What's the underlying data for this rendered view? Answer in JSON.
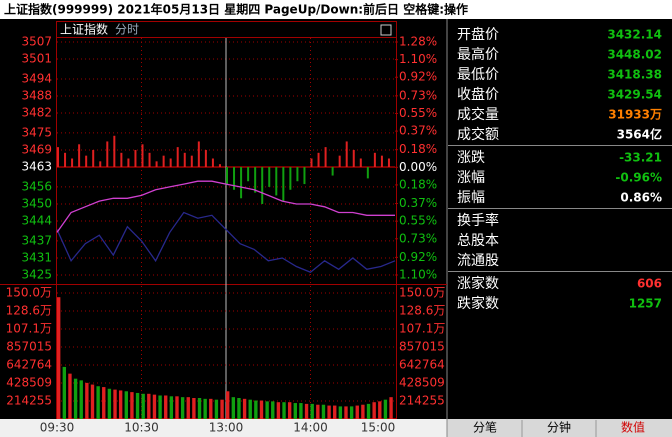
{
  "header": {
    "title": "上证指数(999999)  2021年05月13日 星期四 PageUp/Down:前后日 空格键:操作"
  },
  "chart_data": [
    {
      "type": "line",
      "title": "上证指数",
      "subtitle": "分时",
      "x": [
        0,
        10,
        20,
        30,
        40,
        50,
        60,
        70,
        80,
        90,
        100,
        110,
        120,
        130,
        140,
        150,
        160,
        170,
        180,
        190,
        200,
        210,
        220,
        230,
        240
      ],
      "series": [
        {
          "color": "#28288c",
          "values": [
            3441,
            3430,
            3436,
            3439,
            3432,
            3442,
            3437,
            3430,
            3440,
            3447,
            3445,
            3446,
            3441,
            3436,
            3434,
            3430,
            3431,
            3428,
            3426,
            3430,
            3427,
            3431,
            3427,
            3428,
            3430
          ]
        },
        {
          "color": "#d040d0",
          "values": [
            3440,
            3447,
            3449,
            3451,
            3452,
            3452,
            3453,
            3455,
            3456,
            3457,
            3458,
            3458,
            3457,
            3456,
            3455,
            3453,
            3451,
            3450,
            3450,
            3449,
            3447,
            3447,
            3446,
            3446,
            3446
          ]
        }
      ],
      "breadth": {
        "x": [
          0,
          5,
          10,
          15,
          20,
          25,
          30,
          35,
          40,
          45,
          50,
          55,
          60,
          65,
          70,
          75,
          80,
          85,
          90,
          95,
          100,
          105,
          110,
          115,
          120,
          125,
          130,
          135,
          140,
          145,
          150,
          155,
          160,
          165,
          170,
          175,
          180,
          185,
          190,
          195,
          200,
          205,
          210,
          215,
          220,
          225,
          230,
          235
        ],
        "values": [
          3470,
          3468,
          3466,
          3471,
          3467,
          3469,
          3465,
          3472,
          3474,
          3468,
          3466,
          3469,
          3471,
          3468,
          3465,
          3467,
          3466,
          3470,
          3468,
          3467,
          3472,
          3469,
          3466,
          3464,
          3457,
          3455,
          3452,
          3458,
          3454,
          3450,
          3456,
          3453,
          3451,
          3455,
          3458,
          3457,
          3466,
          3468,
          3470,
          3460,
          3467,
          3472,
          3469,
          3466,
          3459,
          3468,
          3467,
          3466
        ],
        "up_color": "#e02020",
        "down_color": "#10a010"
      },
      "xlim": [
        0,
        240
      ],
      "xticks": [
        {
          "value": 0,
          "label": "09:30"
        },
        {
          "value": 60,
          "label": "10:30"
        },
        {
          "value": 120,
          "label": "13:00"
        },
        {
          "value": 180,
          "label": "14:00"
        },
        {
          "value": 240,
          "label": "15:00"
        }
      ],
      "ylim": [
        3425,
        3507
      ],
      "yticks": [
        3507,
        3501,
        3494,
        3488,
        3482,
        3475,
        3469,
        3463,
        3456,
        3450,
        3444,
        3437,
        3431,
        3425
      ],
      "y2lim": [
        -1.1,
        1.28
      ],
      "y2ticks": [
        {
          "value": 1.28,
          "label": "1.28%"
        },
        {
          "value": 1.1,
          "label": "1.10%"
        },
        {
          "value": 0.92,
          "label": "0.92%"
        },
        {
          "value": 0.73,
          "label": "0.73%"
        },
        {
          "value": 0.55,
          "label": "0.55%"
        },
        {
          "value": 0.37,
          "label": "0.37%"
        },
        {
          "value": 0.18,
          "label": "0.18%"
        },
        {
          "value": 0,
          "label": "0.00%"
        },
        {
          "value": -0.18,
          "label": "0.18%"
        },
        {
          "value": -0.37,
          "label": "0.37%"
        },
        {
          "value": -0.55,
          "label": "0.55%"
        },
        {
          "value": -0.73,
          "label": "0.73%"
        },
        {
          "value": -0.92,
          "label": "0.92%"
        },
        {
          "value": -1.1,
          "label": "1.10%"
        }
      ]
    },
    {
      "type": "bar",
      "x": [
        0,
        4,
        8,
        12,
        16,
        20,
        24,
        28,
        32,
        36,
        40,
        44,
        48,
        52,
        56,
        60,
        64,
        68,
        72,
        76,
        80,
        84,
        88,
        92,
        96,
        100,
        104,
        108,
        112,
        116,
        120,
        124,
        128,
        132,
        136,
        140,
        144,
        148,
        152,
        156,
        160,
        164,
        168,
        172,
        176,
        180,
        184,
        188,
        192,
        196,
        200,
        204,
        208,
        212,
        216,
        220,
        224,
        228,
        232,
        236
      ],
      "values": [
        1450000,
        620000,
        540000,
        480000,
        460000,
        430000,
        410000,
        390000,
        380000,
        360000,
        350000,
        340000,
        330000,
        320000,
        310000,
        300000,
        300000,
        290000,
        280000,
        280000,
        270000,
        270000,
        260000,
        260000,
        250000,
        250000,
        240000,
        240000,
        230000,
        230000,
        330000,
        260000,
        250000,
        240000,
        230000,
        220000,
        220000,
        210000,
        210000,
        200000,
        200000,
        200000,
        190000,
        190000,
        180000,
        180000,
        170000,
        170000,
        160000,
        160000,
        150000,
        150000,
        150000,
        160000,
        170000,
        180000,
        200000,
        210000,
        230000,
        260000
      ],
      "up": [
        true,
        false,
        true,
        false,
        false,
        true,
        true,
        false,
        true,
        false,
        true,
        true,
        false,
        true,
        false,
        false,
        true,
        true,
        false,
        true,
        false,
        true,
        false,
        true,
        true,
        false,
        false,
        true,
        false,
        true,
        true,
        false,
        false,
        true,
        false,
        false,
        true,
        false,
        false,
        true,
        false,
        true,
        false,
        false,
        true,
        false,
        true,
        false,
        true,
        true,
        false,
        true,
        false,
        true,
        true,
        false,
        true,
        true,
        false,
        true
      ],
      "up_color": "#e02020",
      "down_color": "#10a010",
      "xlim": [
        0,
        240
      ],
      "ylim": [
        0,
        1500000
      ],
      "yticks": [
        {
          "value": 1500000,
          "label": "150.0万"
        },
        {
          "value": 1285524,
          "label": "128.6万"
        },
        {
          "value": 1071270,
          "label": "107.1万"
        },
        857015,
        642764,
        428509,
        214255
      ]
    }
  ],
  "quote_panel": {
    "groups": [
      [
        {
          "label": "开盘价",
          "value": "3432.14",
          "color": "#10c010"
        },
        {
          "label": "最高价",
          "value": "3448.02",
          "color": "#10c010"
        },
        {
          "label": "最低价",
          "value": "3418.38",
          "color": "#10c010"
        },
        {
          "label": "收盘价",
          "value": "3429.54",
          "color": "#10c010"
        },
        {
          "label": "成交量",
          "value": "31933万",
          "color": "#ff8000"
        },
        {
          "label": "成交额",
          "value": "3564亿",
          "color": "#ffffff"
        }
      ],
      [
        {
          "label": "涨跌",
          "value": "-33.21",
          "color": "#10c010"
        },
        {
          "label": "涨幅",
          "value": "-0.96%",
          "color": "#10c010"
        },
        {
          "label": "振幅",
          "value": "0.86%",
          "color": "#ffffff"
        }
      ],
      [
        {
          "label": "换手率"
        },
        {
          "label": "总股本"
        },
        {
          "label": "流通股"
        }
      ],
      [
        {
          "label": "涨家数",
          "value": "606",
          "color": "#ff3030"
        },
        {
          "label": "跌家数",
          "value": "1257",
          "color": "#10c010"
        }
      ]
    ]
  },
  "tabs": [
    {
      "label": "分笔",
      "color": "#000000"
    },
    {
      "label": "分钟",
      "color": "#000000"
    },
    {
      "label": "数值",
      "color": "#d00000"
    }
  ]
}
